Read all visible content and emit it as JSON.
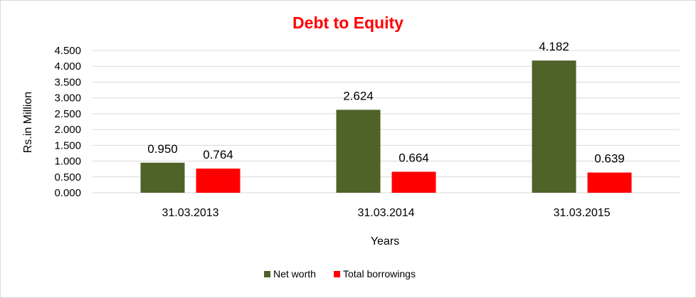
{
  "chart_data": {
    "type": "bar",
    "title": "Debt to Equity",
    "title_color": "#ff0000",
    "xlabel": "Years",
    "ylabel": "Rs.in Million",
    "categories": [
      "31.03.2013",
      "31.03.2014",
      "31.03.2015"
    ],
    "series": [
      {
        "name": "Net worth",
        "color": "#4f6228",
        "values": [
          0.95,
          2.624,
          4.182
        ],
        "labels": [
          "0.950",
          "2.624",
          "4.182"
        ]
      },
      {
        "name": "Total borrowings",
        "color": "#ff0000",
        "values": [
          0.764,
          0.664,
          0.639
        ],
        "labels": [
          "0.764",
          "0.664",
          "0.639"
        ]
      }
    ],
    "ylim": [
      0,
      4.5
    ],
    "yticks": [
      "0.000",
      "0.500",
      "1.000",
      "1.500",
      "2.000",
      "2.500",
      "3.000",
      "3.500",
      "4.000",
      "4.500"
    ],
    "grid": true,
    "gridline_color": "#d9d9d9",
    "legend_position": "bottom"
  }
}
